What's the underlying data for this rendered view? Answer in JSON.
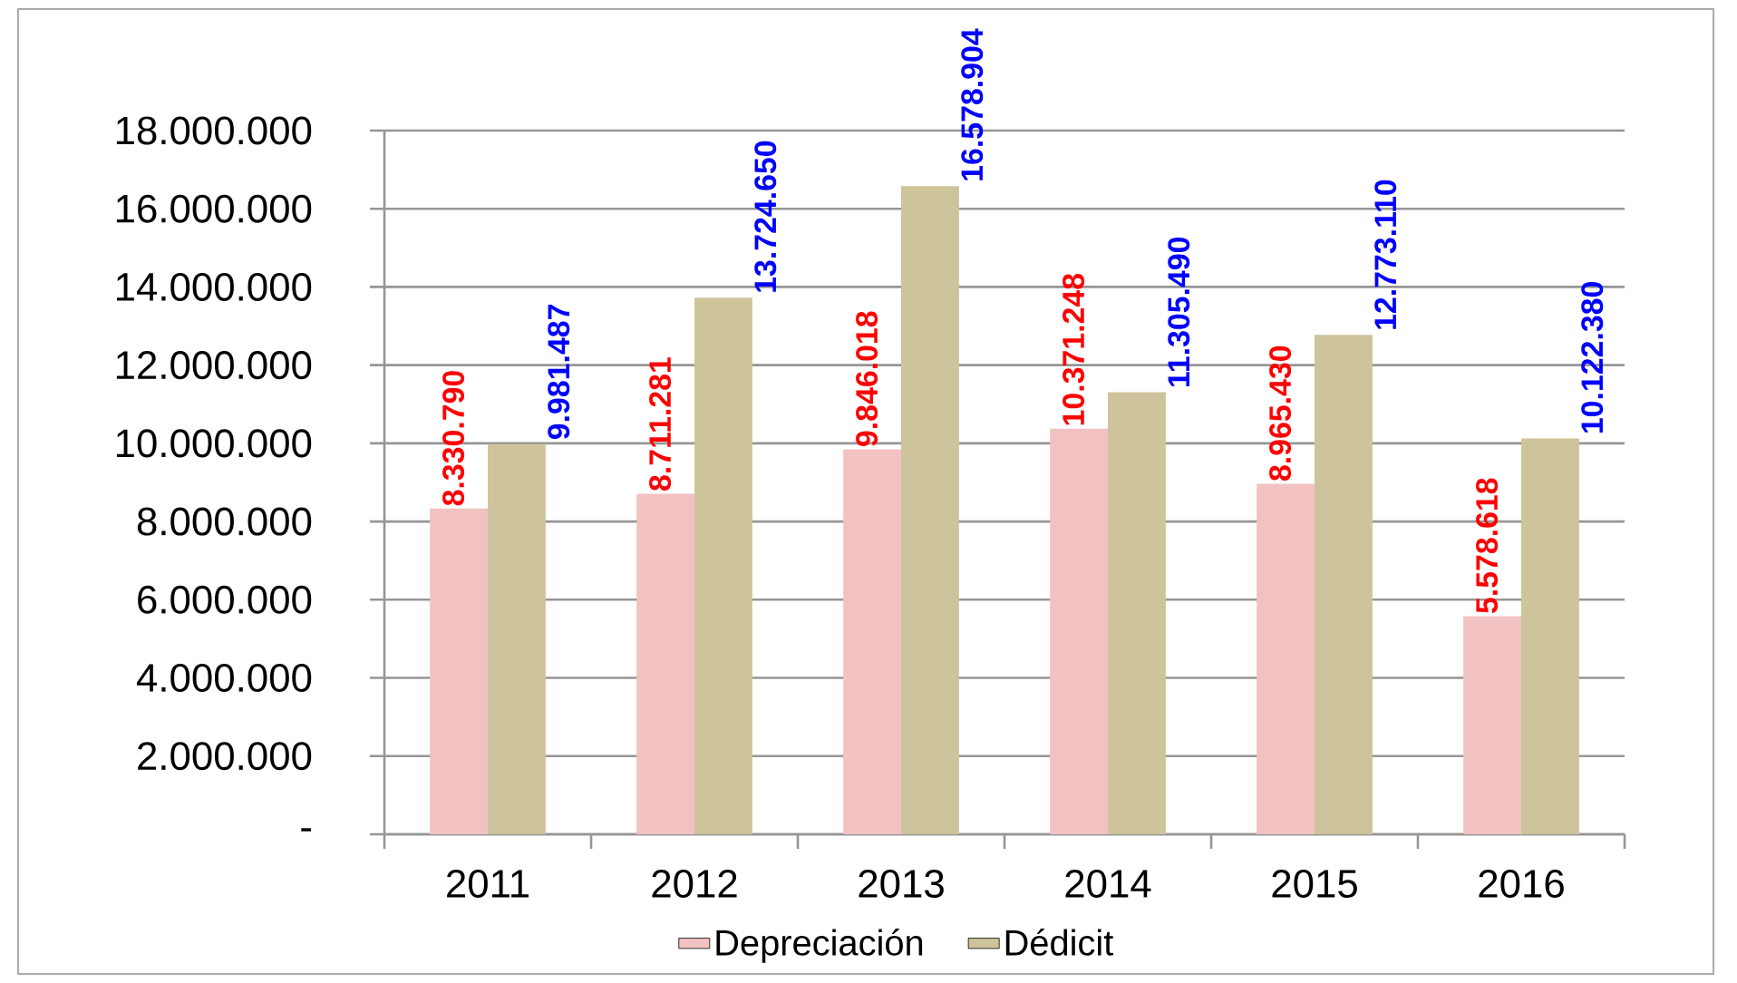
{
  "chart_data": {
    "type": "bar",
    "categories": [
      "2011",
      "2012",
      "2013",
      "2014",
      "2015",
      "2016"
    ],
    "series": [
      {
        "name": "Depreciación",
        "color": "#f2c2c2",
        "values": [
          8330790,
          8711281,
          9846018,
          10371248,
          8965430,
          5578618
        ],
        "value_labels": [
          "8.330.790",
          "8.711.281",
          "9.846.018",
          "10.371.248",
          "8.965.430",
          "5.578.618"
        ]
      },
      {
        "name": "Dédicit",
        "color": "#cdc49b",
        "values": [
          9981487,
          13724650,
          16578904,
          11305490,
          12773110,
          10122380
        ],
        "value_labels": [
          "9.981.487",
          "13.724.650",
          "16.578.904",
          "11.305.490",
          "12.773.110",
          "10.122.380"
        ]
      }
    ],
    "ylim": [
      0,
      18000000
    ],
    "yticks": [
      {
        "value": 0,
        "label": "-"
      },
      {
        "value": 2000000,
        "label": "2.000.000"
      },
      {
        "value": 4000000,
        "label": "4.000.000"
      },
      {
        "value": 6000000,
        "label": "6.000.000"
      },
      {
        "value": 8000000,
        "label": "8.000.000"
      },
      {
        "value": 10000000,
        "label": "10.000.000"
      },
      {
        "value": 12000000,
        "label": "12.000.000"
      },
      {
        "value": 14000000,
        "label": "14.000.000"
      },
      {
        "value": 16000000,
        "label": "16.000.000"
      },
      {
        "value": 18000000,
        "label": "18.000.000"
      }
    ],
    "grid": "y",
    "legend": "bottom"
  }
}
